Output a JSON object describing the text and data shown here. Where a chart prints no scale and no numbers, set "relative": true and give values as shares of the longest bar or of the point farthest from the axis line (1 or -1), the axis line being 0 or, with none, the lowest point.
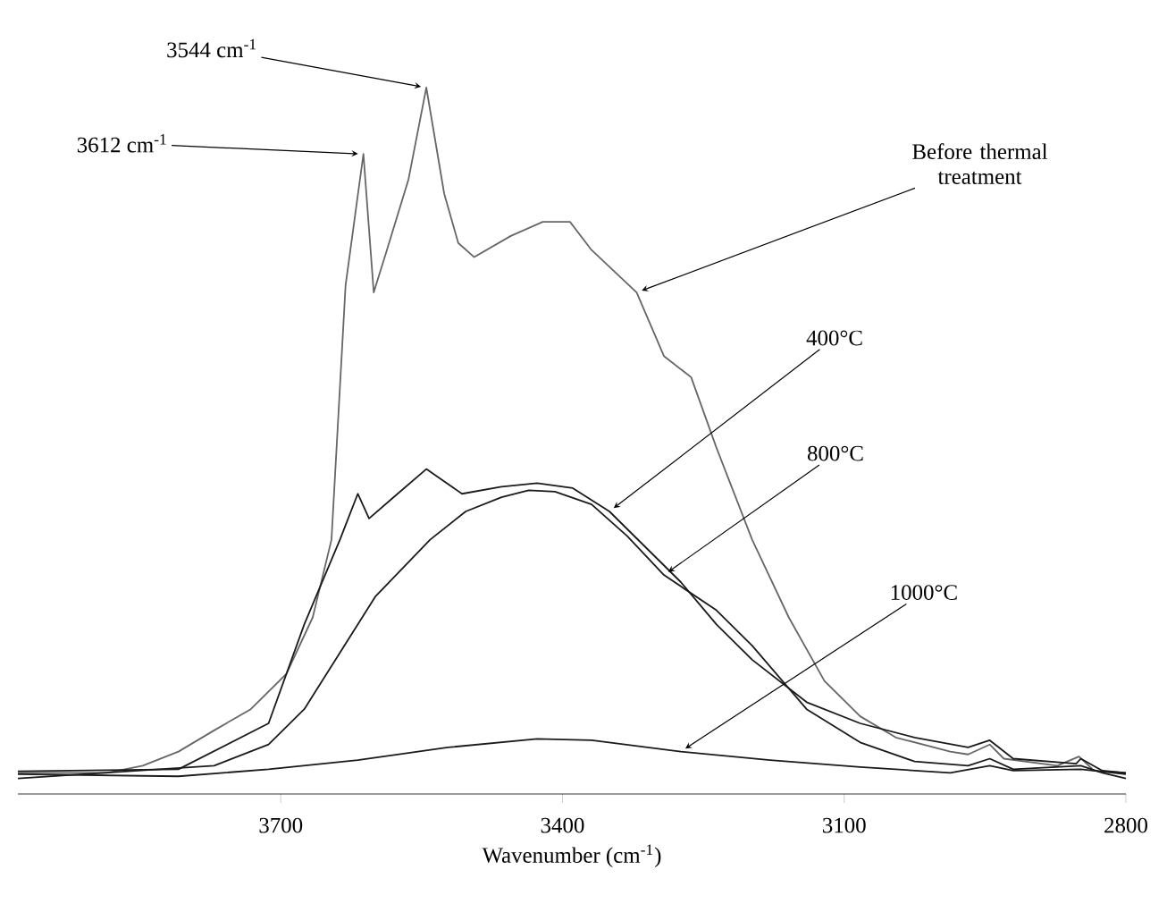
{
  "chart_data": {
    "type": "line",
    "relative": true,
    "xlabel": "Wavenumber (cm$^{-1}$)",
    "xlim": [
      3980,
      2800
    ],
    "xticks": [
      3700,
      3400,
      3100,
      2800
    ],
    "tick_labels": "x",
    "series": [
      {
        "color": "#666666",
        "x": [
          3980,
          3885,
          3847,
          3809,
          3771,
          3732,
          3694,
          3666,
          3646,
          3631,
          3612,
          3601,
          3587,
          3564,
          3545,
          3526,
          3511,
          3494,
          3455,
          3421,
          3392,
          3369,
          3321,
          3292,
          3263,
          3236,
          3198,
          3159,
          3121,
          3083,
          3045,
          2987,
          2968,
          2945,
          2930,
          2873,
          2850,
          2834,
          2800
        ],
        "values": [
          0.03,
          0.03,
          0.04,
          0.06,
          0.09,
          0.12,
          0.17,
          0.25,
          0.36,
          0.72,
          0.906,
          0.71,
          0.77,
          0.87,
          1.0,
          0.85,
          0.78,
          0.76,
          0.79,
          0.81,
          0.81,
          0.77,
          0.71,
          0.62,
          0.59,
          0.49,
          0.36,
          0.25,
          0.16,
          0.11,
          0.08,
          0.06,
          0.056,
          0.07,
          0.05,
          0.04,
          0.053,
          0.033,
          0.03
        ]
      },
      {
        "color": "#1a1a1a",
        "x": [
          3980,
          3809,
          3713,
          3675,
          3637,
          3618,
          3606,
          3580,
          3545,
          3507,
          3465,
          3427,
          3389,
          3350,
          3312,
          3274,
          3236,
          3198,
          3140,
          3083,
          3025,
          2968,
          2945,
          2920,
          2853,
          2848,
          2825,
          2800
        ],
        "values": [
          0.032,
          0.035,
          0.1,
          0.24,
          0.36,
          0.425,
          0.39,
          0.42,
          0.46,
          0.425,
          0.435,
          0.44,
          0.433,
          0.4,
          0.35,
          0.3,
          0.24,
          0.19,
          0.13,
          0.1,
          0.08,
          0.066,
          0.076,
          0.05,
          0.043,
          0.05,
          0.033,
          0.03
        ]
      },
      {
        "color": "#1a1a1a",
        "x": [
          3980,
          3771,
          3713,
          3675,
          3637,
          3599,
          3541,
          3503,
          3465,
          3436,
          3408,
          3369,
          3331,
          3292,
          3236,
          3198,
          3140,
          3083,
          3025,
          2968,
          2945,
          2920,
          2848,
          2825,
          2800
        ],
        "values": [
          0.022,
          0.04,
          0.07,
          0.12,
          0.2,
          0.28,
          0.36,
          0.4,
          0.42,
          0.43,
          0.428,
          0.41,
          0.365,
          0.31,
          0.26,
          0.21,
          0.12,
          0.073,
          0.046,
          0.04,
          0.05,
          0.035,
          0.04,
          0.03,
          0.022
        ]
      },
      {
        "color": "#1a1a1a",
        "x": [
          3980,
          3809,
          3713,
          3618,
          3522,
          3427,
          3369,
          3274,
          3179,
          3083,
          2987,
          2945,
          2920,
          2848,
          2800
        ],
        "values": [
          0.028,
          0.025,
          0.035,
          0.048,
          0.066,
          0.078,
          0.076,
          0.06,
          0.048,
          0.038,
          0.03,
          0.04,
          0.033,
          0.035,
          0.028
        ]
      }
    ],
    "annotations": [
      {
        "text": "3612 cm$^{-1}$",
        "x": 3612,
        "y": 0.906
      },
      {
        "text": "3544 cm$^{-1}$",
        "x": 3545,
        "y": 1.0
      },
      {
        "text": "Before thermal treatment",
        "x": 3321,
        "y": 0.71
      },
      {
        "text": "400°C",
        "x": 3350,
        "y": 0.4
      },
      {
        "text": "800°C",
        "x": 3292,
        "y": 0.31
      },
      {
        "text": "1000°C",
        "x": 3274,
        "y": 0.06
      }
    ]
  }
}
